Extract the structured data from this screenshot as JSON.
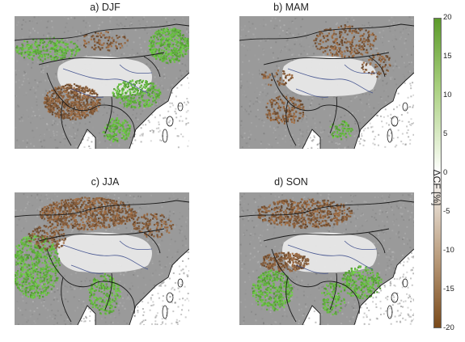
{
  "panels": [
    {
      "label": "a) DJF"
    },
    {
      "label": "b) MAM"
    },
    {
      "label": "c) JJA"
    },
    {
      "label": "d) SON"
    }
  ],
  "colorbar": {
    "label": "ΔCF [%]",
    "ticks": [
      "20",
      "15",
      "10",
      "5",
      "0",
      "-5",
      "-10",
      "-15",
      "-20"
    ],
    "min_color": "#7a4a1a",
    "mid_color": "#ffffff",
    "max_color": "#5c9a2a"
  },
  "colors": {
    "grey_land": "#9a9a9a",
    "tibet_plateau": "#e8e8e8",
    "border": "#1a1a1a",
    "river": "#3a4a8a",
    "positive": "#8ab94a",
    "negative": "#9a6a3a"
  }
}
